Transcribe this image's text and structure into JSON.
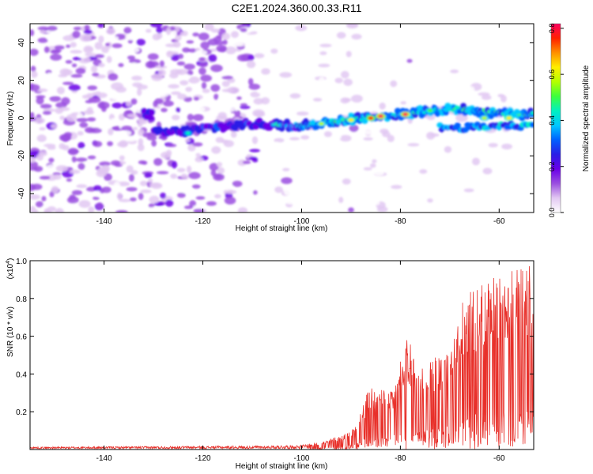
{
  "figure": {
    "title": "C2E1.2024.360.00.33.R11"
  },
  "chart_data": [
    {
      "type": "heatmap",
      "id": "spectrogram",
      "xlabel": "Height of straight line (km)",
      "ylabel": "Frequency (Hz)",
      "xlim": [
        -155,
        -53
      ],
      "ylim": [
        -50,
        50
      ],
      "xticks": [
        -140,
        -120,
        -100,
        -80,
        -60
      ],
      "yticks": [
        -40,
        -20,
        0,
        20,
        40
      ],
      "colorbar": {
        "label": "Normalized spectral amplitude",
        "range": [
          0.0,
          0.82
        ],
        "ticks": [
          "0.0",
          "0.2",
          "0.4",
          "0.6",
          "0.8"
        ],
        "colors": [
          "#ffffff",
          "#e2c8f2",
          "#9a4ee0",
          "#6a00e8",
          "#2a1de6",
          "#0060ff",
          "#00c8ff",
          "#00f0c0",
          "#3cff3c",
          "#b4ff00",
          "#ffee00",
          "#ff9000",
          "#ff2000",
          "#ff0060"
        ]
      },
      "ridge": [
        {
          "x": -130,
          "y": -8
        },
        {
          "x": -124,
          "y": -7
        },
        {
          "x": -118,
          "y": -5
        },
        {
          "x": -110,
          "y": -3
        },
        {
          "x": -100,
          "y": -4
        },
        {
          "x": -94,
          "y": -2
        },
        {
          "x": -88,
          "y": 0
        },
        {
          "x": -84,
          "y": 1
        },
        {
          "x": -80,
          "y": 2
        },
        {
          "x": -74,
          "y": 4
        },
        {
          "x": -68,
          "y": 5
        },
        {
          "x": -62,
          "y": 3
        },
        {
          "x": -56,
          "y": 2
        },
        {
          "x": -53,
          "y": 2
        }
      ],
      "lower_ridge": [
        {
          "x": -72,
          "y": -5
        },
        {
          "x": -66,
          "y": -5
        },
        {
          "x": -60,
          "y": -4
        },
        {
          "x": -54,
          "y": -4
        }
      ],
      "peaks": [
        {
          "x": -123,
          "y": -8,
          "value": 0.45
        },
        {
          "x": -96,
          "y": -3,
          "value": 0.55
        },
        {
          "x": -90,
          "y": -1,
          "value": 0.6
        },
        {
          "x": -86,
          "y": 0,
          "value": 0.75
        },
        {
          "x": -84,
          "y": 1,
          "value": 0.8
        },
        {
          "x": -79,
          "y": 2,
          "value": 0.82
        },
        {
          "x": -74,
          "y": 4,
          "value": 0.5
        },
        {
          "x": -63,
          "y": 0,
          "value": 0.55
        },
        {
          "x": -58,
          "y": 0,
          "value": 0.6
        }
      ]
    },
    {
      "type": "line",
      "id": "snr",
      "xlabel": "Height of straight line (km)",
      "ylabel": "SNR (10 * v/v)",
      "yscale_note": "(x10",
      "yscale_exp": "4",
      "xlim": [
        -155,
        -53
      ],
      "ylim": [
        0,
        1.0
      ],
      "xticks": [
        -140,
        -120,
        -100,
        -80,
        -60
      ],
      "yticks": [
        "0.2",
        "0.4",
        "0.6",
        "0.8",
        "1.0"
      ],
      "color": "#e8302a",
      "envelope": [
        {
          "x": -155,
          "y": 0.01
        },
        {
          "x": -110,
          "y": 0.015
        },
        {
          "x": -100,
          "y": 0.02
        },
        {
          "x": -95,
          "y": 0.05
        },
        {
          "x": -90,
          "y": 0.1
        },
        {
          "x": -86,
          "y": 0.35
        },
        {
          "x": -82,
          "y": 0.3
        },
        {
          "x": -79,
          "y": 0.6
        },
        {
          "x": -75,
          "y": 0.45
        },
        {
          "x": -70,
          "y": 0.55
        },
        {
          "x": -67,
          "y": 0.82
        },
        {
          "x": -62,
          "y": 0.9
        },
        {
          "x": -57,
          "y": 0.95
        },
        {
          "x": -54,
          "y": 1.0
        },
        {
          "x": -53,
          "y": 0.8
        }
      ]
    }
  ]
}
